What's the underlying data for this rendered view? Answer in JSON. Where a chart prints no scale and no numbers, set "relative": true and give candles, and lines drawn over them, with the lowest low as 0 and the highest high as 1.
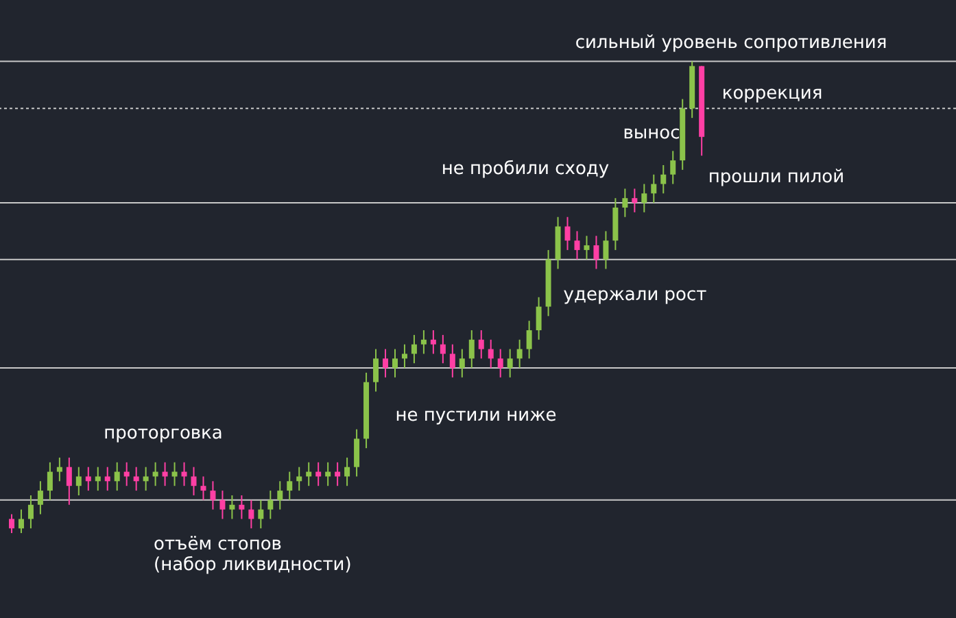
{
  "chart_data": {
    "type": "candlestick",
    "relative": true,
    "categories": [
      null,
      null,
      null,
      null,
      null,
      null,
      null,
      null,
      null,
      null,
      null,
      null,
      null,
      null,
      null,
      null,
      null,
      null,
      null,
      null,
      null,
      null,
      null,
      null,
      null,
      null,
      null,
      null,
      null,
      null,
      null,
      null,
      null,
      null,
      null,
      null,
      null,
      null,
      null,
      null,
      null,
      null,
      null,
      null,
      null,
      null,
      null,
      null,
      null,
      null,
      null,
      null,
      null,
      null,
      null,
      null,
      null,
      null,
      null,
      null,
      null,
      null,
      null,
      null,
      null,
      null,
      null,
      null,
      null,
      null,
      null,
      null,
      null
    ],
    "colors": [
      "#ff3fa4",
      "#8bc34a",
      "#8bc34a",
      "#8bc34a",
      "#8bc34a",
      "#8bc34a",
      "#ff3fa4",
      "#8bc34a",
      "#ff3fa4",
      "#8bc34a",
      "#ff3fa4",
      "#8bc34a",
      "#ff3fa4",
      "#ff3fa4",
      "#8bc34a",
      "#8bc34a",
      "#ff3fa4",
      "#8bc34a",
      "#ff3fa4",
      "#ff3fa4",
      "#ff3fa4",
      "#ff3fa4",
      "#ff3fa4",
      "#8bc34a",
      "#ff3fa4",
      "#ff3fa4",
      "#8bc34a",
      "#8bc34a",
      "#8bc34a",
      "#8bc34a",
      "#8bc34a",
      "#8bc34a",
      "#ff3fa4",
      "#8bc34a",
      "#ff3fa4",
      "#8bc34a",
      "#8bc34a",
      "#8bc34a",
      "#8bc34a",
      "#ff3fa4",
      "#8bc34a",
      "#8bc34a",
      "#8bc34a",
      "#8bc34a",
      "#ff3fa4",
      "#ff3fa4",
      "#ff3fa4",
      "#8bc34a",
      "#8bc34a",
      "#ff3fa4",
      "#ff3fa4",
      "#ff3fa4",
      "#8bc34a",
      "#8bc34a",
      "#8bc34a",
      "#8bc34a",
      "#8bc34a",
      "#8bc34a",
      "#ff3fa4",
      "#ff3fa4",
      "#8bc34a",
      "#ff3fa4",
      "#8bc34a",
      "#8bc34a",
      "#8bc34a",
      "#ff3fa4",
      "#8bc34a",
      "#8bc34a",
      "#8bc34a",
      "#8bc34a",
      "#8bc34a",
      "#8bc34a",
      "#ff3fa4"
    ],
    "ohlc": [
      [
        0.03,
        0.04,
        0.0,
        0.01
      ],
      [
        0.01,
        0.05,
        0.0,
        0.03
      ],
      [
        0.03,
        0.08,
        0.01,
        0.06
      ],
      [
        0.06,
        0.11,
        0.04,
        0.09
      ],
      [
        0.09,
        0.15,
        0.07,
        0.13
      ],
      [
        0.13,
        0.16,
        0.11,
        0.14
      ],
      [
        0.14,
        0.16,
        0.06,
        0.1
      ],
      [
        0.1,
        0.14,
        0.08,
        0.12
      ],
      [
        0.12,
        0.14,
        0.09,
        0.11
      ],
      [
        0.11,
        0.14,
        0.09,
        0.12
      ],
      [
        0.12,
        0.14,
        0.09,
        0.11
      ],
      [
        0.11,
        0.15,
        0.09,
        0.13
      ],
      [
        0.13,
        0.15,
        0.1,
        0.12
      ],
      [
        0.12,
        0.14,
        0.09,
        0.11
      ],
      [
        0.11,
        0.14,
        0.09,
        0.12
      ],
      [
        0.12,
        0.15,
        0.1,
        0.13
      ],
      [
        0.13,
        0.15,
        0.1,
        0.12
      ],
      [
        0.12,
        0.15,
        0.1,
        0.13
      ],
      [
        0.13,
        0.15,
        0.1,
        0.12
      ],
      [
        0.12,
        0.14,
        0.08,
        0.1
      ],
      [
        0.1,
        0.12,
        0.07,
        0.09
      ],
      [
        0.09,
        0.11,
        0.05,
        0.07
      ],
      [
        0.07,
        0.09,
        0.03,
        0.05
      ],
      [
        0.05,
        0.08,
        0.03,
        0.06
      ],
      [
        0.06,
        0.08,
        0.03,
        0.05
      ],
      [
        0.05,
        0.07,
        0.01,
        0.03
      ],
      [
        0.03,
        0.07,
        0.01,
        0.05
      ],
      [
        0.05,
        0.09,
        0.03,
        0.07
      ],
      [
        0.07,
        0.11,
        0.05,
        0.09
      ],
      [
        0.09,
        0.13,
        0.07,
        0.11
      ],
      [
        0.11,
        0.14,
        0.09,
        0.12
      ],
      [
        0.12,
        0.15,
        0.1,
        0.13
      ],
      [
        0.13,
        0.15,
        0.1,
        0.12
      ],
      [
        0.12,
        0.15,
        0.1,
        0.13
      ],
      [
        0.13,
        0.15,
        0.1,
        0.12
      ],
      [
        0.12,
        0.16,
        0.1,
        0.14
      ],
      [
        0.14,
        0.22,
        0.12,
        0.2
      ],
      [
        0.2,
        0.34,
        0.18,
        0.32
      ],
      [
        0.32,
        0.39,
        0.3,
        0.37
      ],
      [
        0.37,
        0.39,
        0.33,
        0.35
      ],
      [
        0.35,
        0.39,
        0.33,
        0.37
      ],
      [
        0.37,
        0.4,
        0.35,
        0.38
      ],
      [
        0.38,
        0.42,
        0.36,
        0.4
      ],
      [
        0.4,
        0.43,
        0.38,
        0.41
      ],
      [
        0.41,
        0.43,
        0.38,
        0.4
      ],
      [
        0.4,
        0.42,
        0.36,
        0.38
      ],
      [
        0.38,
        0.4,
        0.33,
        0.35
      ],
      [
        0.35,
        0.39,
        0.33,
        0.37
      ],
      [
        0.37,
        0.43,
        0.35,
        0.41
      ],
      [
        0.41,
        0.43,
        0.37,
        0.39
      ],
      [
        0.39,
        0.41,
        0.35,
        0.37
      ],
      [
        0.37,
        0.39,
        0.33,
        0.35
      ],
      [
        0.35,
        0.39,
        0.33,
        0.37
      ],
      [
        0.37,
        0.41,
        0.35,
        0.39
      ],
      [
        0.39,
        0.45,
        0.37,
        0.43
      ],
      [
        0.43,
        0.5,
        0.41,
        0.48
      ],
      [
        0.48,
        0.6,
        0.46,
        0.58
      ],
      [
        0.58,
        0.67,
        0.56,
        0.65
      ],
      [
        0.65,
        0.67,
        0.6,
        0.62
      ],
      [
        0.62,
        0.64,
        0.58,
        0.6
      ],
      [
        0.6,
        0.63,
        0.58,
        0.61
      ],
      [
        0.61,
        0.63,
        0.56,
        0.58
      ],
      [
        0.58,
        0.64,
        0.56,
        0.62
      ],
      [
        0.62,
        0.71,
        0.6,
        0.69
      ],
      [
        0.69,
        0.73,
        0.67,
        0.71
      ],
      [
        0.71,
        0.73,
        0.68,
        0.7
      ],
      [
        0.7,
        0.74,
        0.68,
        0.72
      ],
      [
        0.72,
        0.76,
        0.7,
        0.74
      ],
      [
        0.74,
        0.78,
        0.72,
        0.76
      ],
      [
        0.76,
        0.81,
        0.74,
        0.79
      ],
      [
        0.79,
        0.92,
        0.77,
        0.9
      ],
      [
        0.9,
        1.0,
        0.88,
        0.99
      ],
      [
        0.99,
        0.99,
        0.8,
        0.84
      ]
    ],
    "ref_lines": [
      {
        "axis": "y",
        "value": 1.0,
        "color": "#c8c8c8"
      },
      {
        "axis": "y",
        "value": 0.9,
        "color": "#c8c8c8",
        "line_style": "dotted"
      },
      {
        "axis": "y",
        "value": 0.7,
        "color": "#c8c8c8"
      },
      {
        "axis": "y",
        "value": 0.58,
        "color": "#c8c8c8"
      },
      {
        "axis": "y",
        "value": 0.35,
        "color": "#c8c8c8"
      },
      {
        "axis": "y",
        "value": 0.07,
        "color": "#c8c8c8"
      }
    ],
    "annotations": [
      "сильный уровень сопротивления",
      "коррекция",
      "вынос",
      "не пробили сходу",
      "прошли пилой",
      "удержали рост",
      "не пустили ниже",
      "проторговка",
      "отъём стопов\n(набор ликвидности)"
    ]
  }
}
